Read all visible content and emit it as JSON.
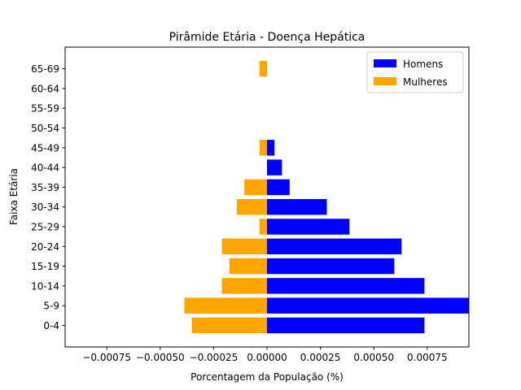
{
  "chart_data": {
    "type": "bar",
    "orientation": "horizontal",
    "title": "Pirâmide Etária - Doença Hepática",
    "xlabel": "Porcentagem da População (%)",
    "ylabel": "Faixa Etária",
    "categories": [
      "0-4",
      "5-9",
      "10-14",
      "15-19",
      "20-24",
      "25-29",
      "30-34",
      "35-39",
      "40-44",
      "45-49",
      "50-54",
      "55-59",
      "60-64",
      "65-69"
    ],
    "series": [
      {
        "name": "Homens",
        "color": "#0000ff",
        "values": [
          0.000737,
          0.000945,
          0.000737,
          0.000596,
          0.00063,
          0.000386,
          0.00028,
          0.000106,
          7e-05,
          3.5e-05,
          0,
          0,
          0,
          0
        ]
      },
      {
        "name": "Mulheres",
        "color": "#ffa500",
        "values": [
          -0.000352,
          -0.000387,
          -0.000211,
          -0.000176,
          -0.000211,
          -3.5e-05,
          -0.000141,
          -0.000106,
          0,
          -3.5e-05,
          0,
          0,
          0,
          -3.5e-05
        ]
      }
    ],
    "xlim": [
      -0.000945,
      0.000945
    ],
    "xticks": [
      -0.00075,
      -0.0005,
      -0.00025,
      0,
      0.00025,
      0.0005,
      0.00075
    ],
    "xtick_labels": [
      "−0.00075",
      "−0.00050",
      "−0.00025",
      "0.00000",
      "0.00025",
      "0.00050",
      "0.00075"
    ],
    "grid": false,
    "legend_position": "top-right"
  }
}
